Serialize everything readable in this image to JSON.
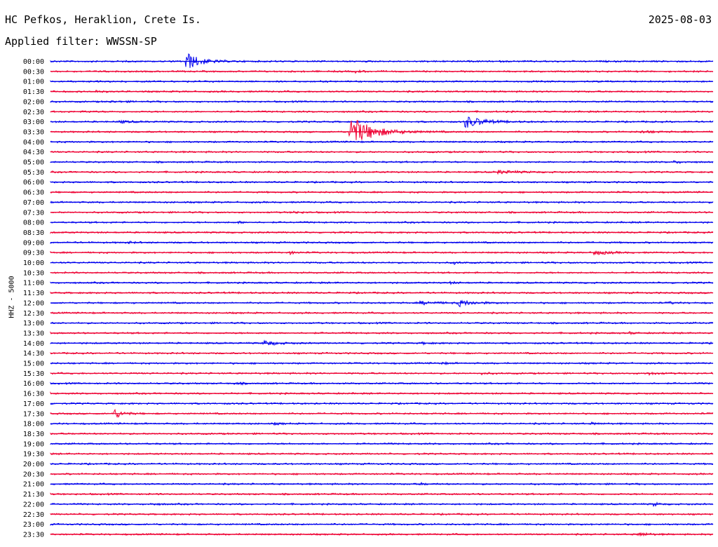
{
  "header": {
    "station": "HC Pefkos, Heraklion, Crete Is.",
    "date": "2025-08-03",
    "filter": "Applied filter: WWSSN-SP"
  },
  "chart_data": {
    "type": "helicorder",
    "title": "HC Pefkos, Heraklion, Crete Is.",
    "ylabel": "HHZ - 5000",
    "colors": [
      "#0000ee",
      "#ee0033"
    ],
    "rows": [
      "00:00",
      "00:30",
      "01:00",
      "01:30",
      "02:00",
      "02:30",
      "03:00",
      "03:30",
      "04:00",
      "04:30",
      "05:00",
      "05:30",
      "06:00",
      "06:30",
      "07:00",
      "07:30",
      "08:00",
      "08:30",
      "09:00",
      "09:30",
      "10:00",
      "10:30",
      "11:00",
      "11:30",
      "12:00",
      "12:30",
      "13:00",
      "13:30",
      "14:00",
      "14:30",
      "15:00",
      "15:30",
      "16:00",
      "16:30",
      "17:00",
      "17:30",
      "18:00",
      "18:30",
      "19:00",
      "19:30",
      "20:00",
      "20:30",
      "21:00",
      "21:30",
      "22:00",
      "22:30",
      "23:00",
      "23:30"
    ],
    "events": [
      {
        "row": 0,
        "minute": 6.1,
        "amplitude": 6,
        "duration": 0.9
      },
      {
        "row": 1,
        "minute": 13.8,
        "amplitude": 0.6,
        "duration": 0.5
      },
      {
        "row": 3,
        "minute": 2.0,
        "amplitude": 1.2,
        "duration": 0.3
      },
      {
        "row": 4,
        "minute": 2.6,
        "amplitude": 0.3,
        "duration": 1.5
      },
      {
        "row": 5,
        "minute": 1.5,
        "amplitude": 0.5,
        "duration": 0.6
      },
      {
        "row": 6,
        "minute": 3.1,
        "amplitude": 0.7,
        "duration": 0.8
      },
      {
        "row": 6,
        "minute": 18.7,
        "amplitude": 4.0,
        "duration": 1.2
      },
      {
        "row": 7,
        "minute": 13.5,
        "amplitude": 10,
        "duration": 1.5
      },
      {
        "row": 7,
        "minute": 26.7,
        "amplitude": 0.8,
        "duration": 0.8
      },
      {
        "row": 10,
        "minute": 28.2,
        "amplitude": 0.6,
        "duration": 0.7
      },
      {
        "row": 11,
        "minute": 20.2,
        "amplitude": 1.1,
        "duration": 1.2
      },
      {
        "row": 15,
        "minute": 11.0,
        "amplitude": 0.8,
        "duration": 0.4
      },
      {
        "row": 16,
        "minute": 8.5,
        "amplitude": 0.6,
        "duration": 0.5
      },
      {
        "row": 18,
        "minute": 3.4,
        "amplitude": 0.8,
        "duration": 0.4
      },
      {
        "row": 19,
        "minute": 10.8,
        "amplitude": 1.0,
        "duration": 0.4
      },
      {
        "row": 19,
        "minute": 24.6,
        "amplitude": 1.3,
        "duration": 1.0
      },
      {
        "row": 20,
        "minute": 18.2,
        "amplitude": 1.0,
        "duration": 0.3
      },
      {
        "row": 22,
        "minute": 18.0,
        "amplitude": 0.6,
        "duration": 0.6
      },
      {
        "row": 24,
        "minute": 16.7,
        "amplitude": 1.0,
        "duration": 1.2
      },
      {
        "row": 24,
        "minute": 18.4,
        "amplitude": 2.0,
        "duration": 1.0
      },
      {
        "row": 24,
        "minute": 28.0,
        "amplitude": 0.6,
        "duration": 0.4
      },
      {
        "row": 27,
        "minute": 26.2,
        "amplitude": 0.7,
        "duration": 0.3
      },
      {
        "row": 28,
        "minute": 9.6,
        "amplitude": 1.8,
        "duration": 0.8
      },
      {
        "row": 28,
        "minute": 16.8,
        "amplitude": 0.6,
        "duration": 0.5
      },
      {
        "row": 30,
        "minute": 17.6,
        "amplitude": 0.6,
        "duration": 0.5
      },
      {
        "row": 31,
        "minute": 19.4,
        "amplitude": 0.7,
        "duration": 0.6
      },
      {
        "row": 31,
        "minute": 27.0,
        "amplitude": 0.9,
        "duration": 0.6
      },
      {
        "row": 32,
        "minute": 8.3,
        "amplitude": 0.5,
        "duration": 0.6
      },
      {
        "row": 35,
        "minute": 2.8,
        "amplitude": 3.5,
        "duration": 0.6
      },
      {
        "row": 36,
        "minute": 10.1,
        "amplitude": 0.5,
        "duration": 0.5
      },
      {
        "row": 36,
        "minute": 24.5,
        "amplitude": 0.5,
        "duration": 0.5
      },
      {
        "row": 40,
        "minute": 30.0,
        "amplitude": 0.5,
        "duration": 0.3
      },
      {
        "row": 42,
        "minute": 16.7,
        "amplitude": 0.6,
        "duration": 0.5
      },
      {
        "row": 44,
        "minute": 4.5,
        "amplitude": 0.5,
        "duration": 0.6
      },
      {
        "row": 44,
        "minute": 27.3,
        "amplitude": 1.2,
        "duration": 0.3
      },
      {
        "row": 47,
        "minute": 26.6,
        "amplitude": 1.3,
        "duration": 0.6
      }
    ]
  }
}
